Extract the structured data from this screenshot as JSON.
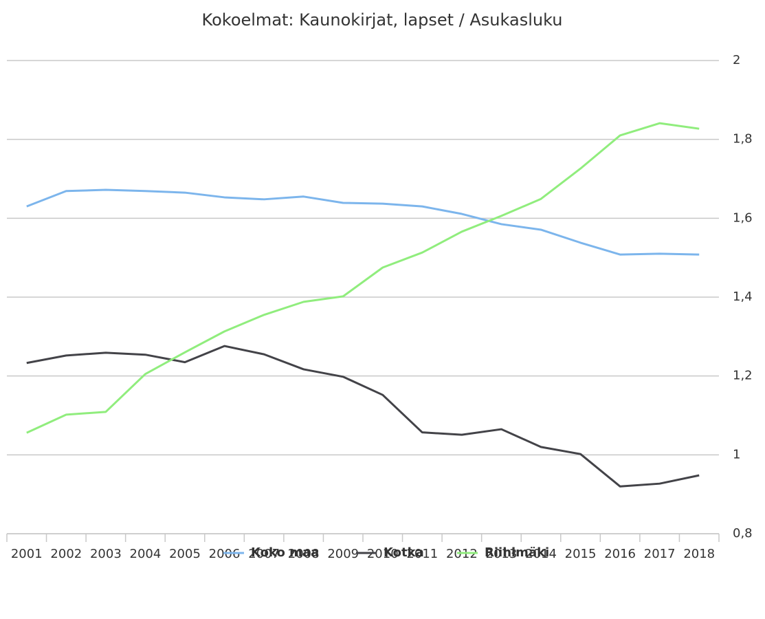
{
  "chart_data": {
    "type": "line",
    "title": "Kokoelmat: Kaunokirjat, lapset / Asukasluku",
    "categories": [
      "2001",
      "2002",
      "2003",
      "2004",
      "2005",
      "2006",
      "2007",
      "2008",
      "2009",
      "2010",
      "2011",
      "2012",
      "2013",
      "2014",
      "2015",
      "2016",
      "2017",
      "2018"
    ],
    "series": [
      {
        "name": "Koko maa",
        "color": "#7cb5ec",
        "values": [
          1.63,
          1.669,
          1.672,
          1.669,
          1.665,
          1.653,
          1.648,
          1.655,
          1.639,
          1.637,
          1.63,
          1.611,
          1.585,
          1.571,
          1.538,
          1.508,
          1.51,
          1.508
        ]
      },
      {
        "name": "Kotka",
        "color": "#434348",
        "values": [
          1.233,
          1.252,
          1.259,
          1.254,
          1.235,
          1.276,
          1.255,
          1.217,
          1.198,
          1.152,
          1.057,
          1.051,
          1.065,
          1.02,
          1.002,
          0.92,
          0.927,
          0.948
        ]
      },
      {
        "name": "Riihimäki",
        "color": "#90ed7d",
        "values": [
          1.056,
          1.102,
          1.109,
          1.205,
          1.26,
          1.313,
          1.355,
          1.388,
          1.402,
          1.475,
          1.513,
          1.566,
          1.606,
          1.649,
          1.726,
          1.81,
          1.841,
          1.827
        ]
      }
    ],
    "ylim": [
      0.8,
      2
    ],
    "yticks": [
      {
        "value": 0.8,
        "label": "0,8"
      },
      1,
      {
        "value": 1.2,
        "label": "1,2"
      },
      {
        "value": 1.4,
        "label": "1,4"
      },
      {
        "value": 1.6,
        "label": "1,6"
      },
      {
        "value": 1.8,
        "label": "1,8"
      },
      2
    ],
    "grid": true,
    "legend": "bottom"
  }
}
